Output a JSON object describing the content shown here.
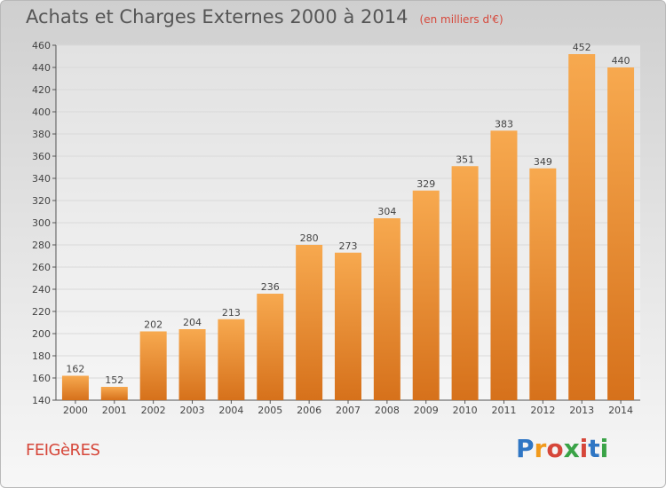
{
  "header": {
    "title": "Achats et Charges Externes 2000 à 2014",
    "subtitle": "(en milliers d'€)"
  },
  "footer": {
    "commune": "FEIGèRES",
    "logo_text": "Proxiti"
  },
  "colors": {
    "bar_light": "#f7a94f",
    "bar_dark": "#d6711b",
    "accent": "#d6473a",
    "grid": "#d9d9d9",
    "axis": "#555555"
  },
  "logo_colors": [
    "#2f76c4",
    "#f19a1c",
    "#d6473a",
    "#3aa347",
    "#d6473a",
    "#2f76c4",
    "#3aa347"
  ],
  "chart_data": {
    "type": "bar",
    "title": "Achats et Charges Externes 2000 à 2014",
    "subtitle": "(en milliers d'€)",
    "xlabel": "",
    "ylabel": "",
    "categories": [
      "2000",
      "2001",
      "2002",
      "2003",
      "2004",
      "2005",
      "2006",
      "2007",
      "2008",
      "2009",
      "2010",
      "2011",
      "2012",
      "2013",
      "2014"
    ],
    "values": [
      162,
      152,
      202,
      204,
      213,
      236,
      280,
      273,
      304,
      329,
      351,
      383,
      349,
      452,
      440
    ],
    "ylim": [
      140,
      460
    ],
    "yticks": [
      140,
      160,
      180,
      200,
      220,
      240,
      260,
      280,
      300,
      320,
      340,
      360,
      380,
      400,
      420,
      440,
      460
    ],
    "grid": true,
    "legend": "none"
  }
}
